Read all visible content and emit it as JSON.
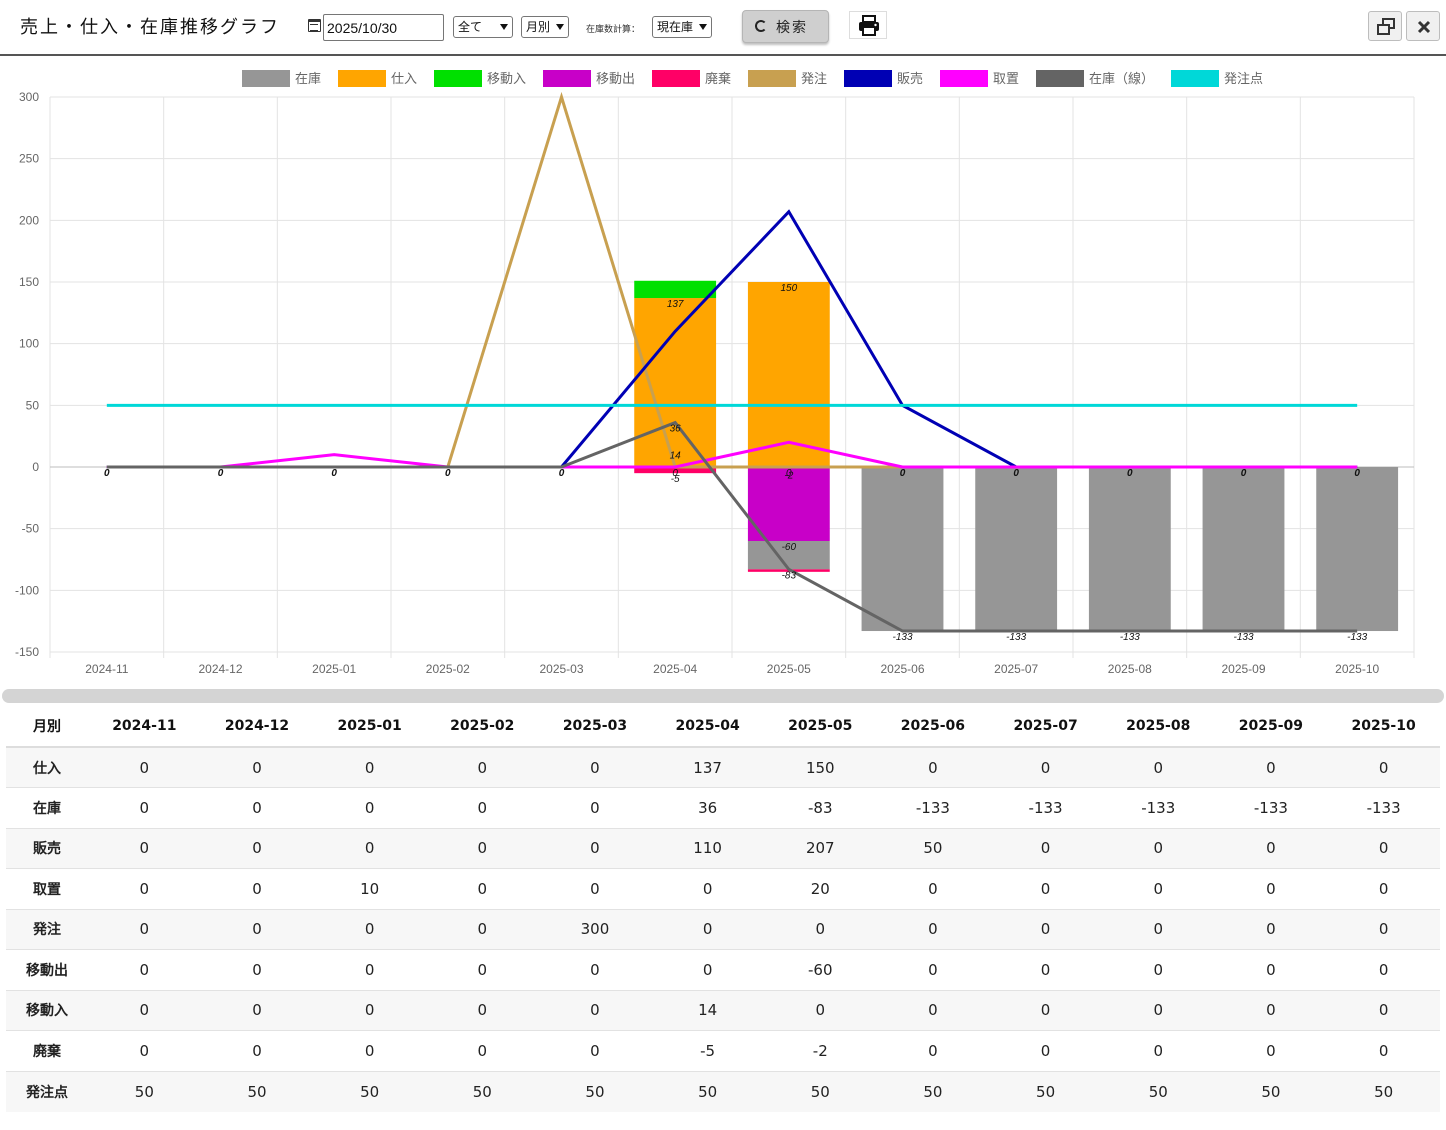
{
  "window": {
    "title": "売上・仕入・在庫推移グラフ"
  },
  "toolbar": {
    "date_value": "2025/10/30",
    "filter_select": "全て",
    "period_select": "月別",
    "stock_calc_label": "在庫数計算：",
    "stock_calc_select": "現在庫",
    "search_label": "検索"
  },
  "chart_data": {
    "type": "bar",
    "categories": [
      "2024-11",
      "2024-12",
      "2025-01",
      "2025-02",
      "2025-03",
      "2025-04",
      "2025-05",
      "2025-06",
      "2025-07",
      "2025-08",
      "2025-09",
      "2025-10"
    ],
    "ylim": [
      -150,
      300
    ],
    "yticks": [
      300,
      250,
      200,
      150,
      100,
      50,
      0,
      -50,
      -100,
      -150
    ],
    "grid": true,
    "legend_position": "top",
    "series": [
      {
        "name": "在庫",
        "type": "bar",
        "color": "#969696",
        "values": [
          0,
          0,
          0,
          0,
          0,
          36,
          -83,
          -133,
          -133,
          -133,
          -133,
          -133
        ]
      },
      {
        "name": "仕入",
        "type": "bar",
        "color": "#FFA500",
        "values": [
          0,
          0,
          0,
          0,
          0,
          137,
          150,
          0,
          0,
          0,
          0,
          0
        ]
      },
      {
        "name": "移動入",
        "type": "bar",
        "color": "#00E000",
        "values": [
          0,
          0,
          0,
          0,
          0,
          14,
          0,
          0,
          0,
          0,
          0,
          0
        ]
      },
      {
        "name": "移動出",
        "type": "bar",
        "color": "#C800C8",
        "values": [
          0,
          0,
          0,
          0,
          0,
          0,
          -60,
          0,
          0,
          0,
          0,
          0
        ]
      },
      {
        "name": "廃棄",
        "type": "bar",
        "color": "#FF0066",
        "values": [
          0,
          0,
          0,
          0,
          0,
          -5,
          -2,
          0,
          0,
          0,
          0,
          0
        ]
      },
      {
        "name": "発注",
        "type": "line",
        "color": "#C8A050",
        "values": [
          0,
          0,
          0,
          0,
          300,
          0,
          0,
          0,
          0,
          0,
          0,
          0
        ]
      },
      {
        "name": "販売",
        "type": "line",
        "color": "#0000B4",
        "values": [
          0,
          0,
          0,
          0,
          0,
          110,
          207,
          50,
          0,
          0,
          0,
          0
        ]
      },
      {
        "name": "取置",
        "type": "line",
        "color": "#FF00FF",
        "values": [
          0,
          0,
          10,
          0,
          0,
          0,
          20,
          0,
          0,
          0,
          0,
          0
        ]
      },
      {
        "name": "在庫（線）",
        "type": "line",
        "color": "#646464",
        "values": [
          0,
          0,
          0,
          0,
          0,
          36,
          -83,
          -133,
          -133,
          -133,
          -133,
          -133
        ]
      },
      {
        "name": "発注点",
        "type": "line",
        "color": "#00D8D8",
        "values": [
          50,
          50,
          50,
          50,
          50,
          50,
          50,
          50,
          50,
          50,
          50,
          50
        ]
      }
    ],
    "data_labels": [
      {
        "index": 0,
        "text": "0"
      },
      {
        "index": 1,
        "text": "0"
      },
      {
        "index": 2,
        "text": "0"
      },
      {
        "index": 3,
        "text": "0"
      },
      {
        "index": 4,
        "text": "0"
      },
      {
        "index": 5,
        "value": 137,
        "text": "137"
      },
      {
        "index": 5,
        "value": 36,
        "text": "36"
      },
      {
        "index": 5,
        "value": 14,
        "text": "14"
      },
      {
        "index": 5,
        "value": 0,
        "text": "0"
      },
      {
        "index": 5,
        "value": -5,
        "text": "-5"
      },
      {
        "index": 6,
        "value": 150,
        "text": "150"
      },
      {
        "index": 6,
        "value": 0,
        "text": "0"
      },
      {
        "index": 6,
        "value": -2,
        "text": "-2"
      },
      {
        "index": 6,
        "value": -60,
        "text": "-60"
      },
      {
        "index": 6,
        "value": -83,
        "text": "-83"
      },
      {
        "index": 7,
        "text": "0"
      },
      {
        "index": 8,
        "text": "0"
      },
      {
        "index": 9,
        "text": "0"
      },
      {
        "index": 10,
        "text": "0"
      },
      {
        "index": 11,
        "text": "0"
      },
      {
        "index": 7,
        "value": -133,
        "text": "-133"
      },
      {
        "index": 8,
        "value": -133,
        "text": "-133"
      },
      {
        "index": 9,
        "value": -133,
        "text": "-133"
      },
      {
        "index": 10,
        "value": -133,
        "text": "-133"
      },
      {
        "index": 11,
        "value": -133,
        "text": "-133"
      }
    ]
  },
  "table": {
    "header_label": "月別",
    "columns": [
      "2024-11",
      "2024-12",
      "2025-01",
      "2025-02",
      "2025-03",
      "2025-04",
      "2025-05",
      "2025-06",
      "2025-07",
      "2025-08",
      "2025-09",
      "2025-10"
    ],
    "rows": [
      {
        "label": "仕入",
        "values": [
          "0",
          "0",
          "0",
          "0",
          "0",
          "137",
          "150",
          "0",
          "0",
          "0",
          "0",
          "0"
        ]
      },
      {
        "label": "在庫",
        "values": [
          "0",
          "0",
          "0",
          "0",
          "0",
          "36",
          "-83",
          "-133",
          "-133",
          "-133",
          "-133",
          "-133"
        ]
      },
      {
        "label": "販売",
        "values": [
          "0",
          "0",
          "0",
          "0",
          "0",
          "110",
          "207",
          "50",
          "0",
          "0",
          "0",
          "0"
        ]
      },
      {
        "label": "取置",
        "values": [
          "0",
          "0",
          "10",
          "0",
          "0",
          "0",
          "20",
          "0",
          "0",
          "0",
          "0",
          "0"
        ]
      },
      {
        "label": "発注",
        "values": [
          "0",
          "0",
          "0",
          "0",
          "300",
          "0",
          "0",
          "0",
          "0",
          "0",
          "0",
          "0"
        ]
      },
      {
        "label": "移動出",
        "values": [
          "0",
          "0",
          "0",
          "0",
          "0",
          "0",
          "-60",
          "0",
          "0",
          "0",
          "0",
          "0"
        ]
      },
      {
        "label": "移動入",
        "values": [
          "0",
          "0",
          "0",
          "0",
          "0",
          "14",
          "0",
          "0",
          "0",
          "0",
          "0",
          "0"
        ]
      },
      {
        "label": "廃棄",
        "values": [
          "0",
          "0",
          "0",
          "0",
          "0",
          "-5",
          "-2",
          "0",
          "0",
          "0",
          "0",
          "0"
        ]
      },
      {
        "label": "発注点",
        "values": [
          "50",
          "50",
          "50",
          "50",
          "50",
          "50",
          "50",
          "50",
          "50",
          "50",
          "50",
          "50"
        ]
      }
    ]
  }
}
